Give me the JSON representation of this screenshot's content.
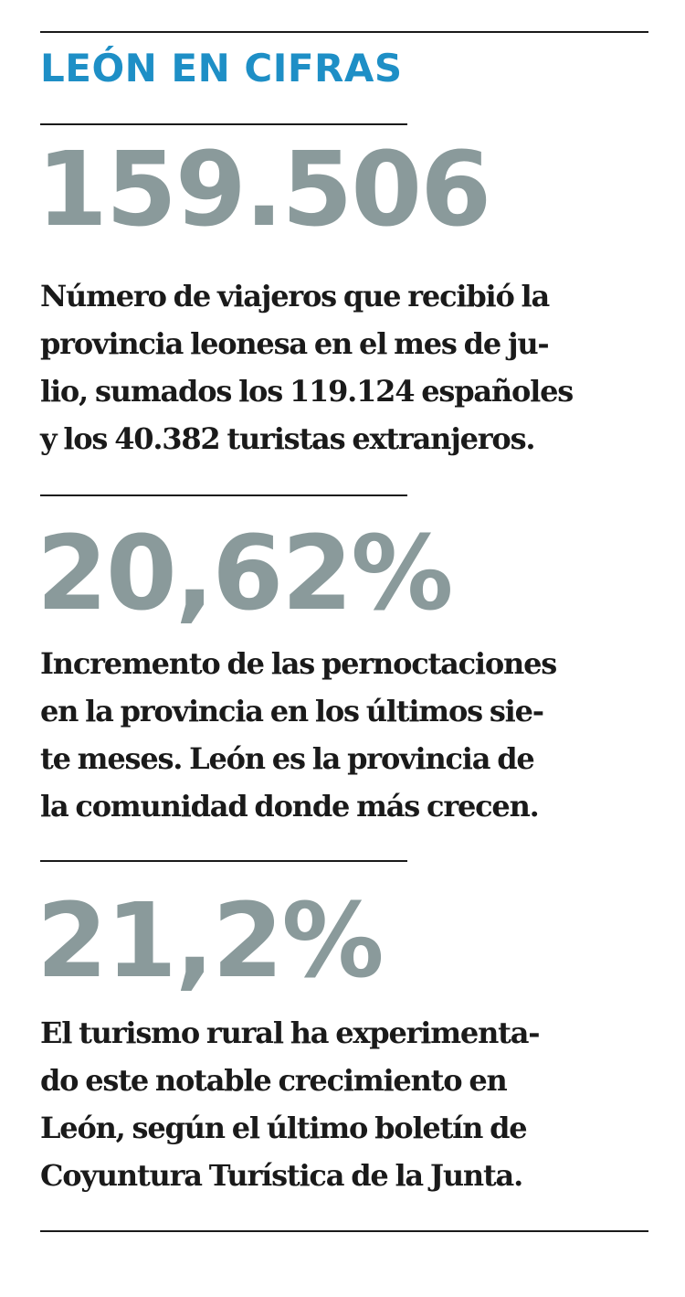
{
  "header": {
    "title": "LEÓN EN CIFRAS"
  },
  "stats": [
    {
      "figure": "159.506",
      "lines": [
        "Número de viajeros que recibió la",
        "provincia leonesa en el mes de ju-",
        "lio, sumados los 119.124 españoles",
        "y los 40.382 turistas extranjeros."
      ]
    },
    {
      "figure": "20,62%",
      "lines": [
        "Incremento de las pernoctaciones",
        "en la provincia en los últimos sie-",
        "te meses. León es la provincia de",
        "la comunidad donde más crecen."
      ]
    },
    {
      "figure": "21,2%",
      "lines": [
        "El turismo rural ha experimenta-",
        "do este notable crecimiento en",
        "León, según el último boletín de",
        "Coyuntura Turística de la Junta."
      ]
    }
  ]
}
